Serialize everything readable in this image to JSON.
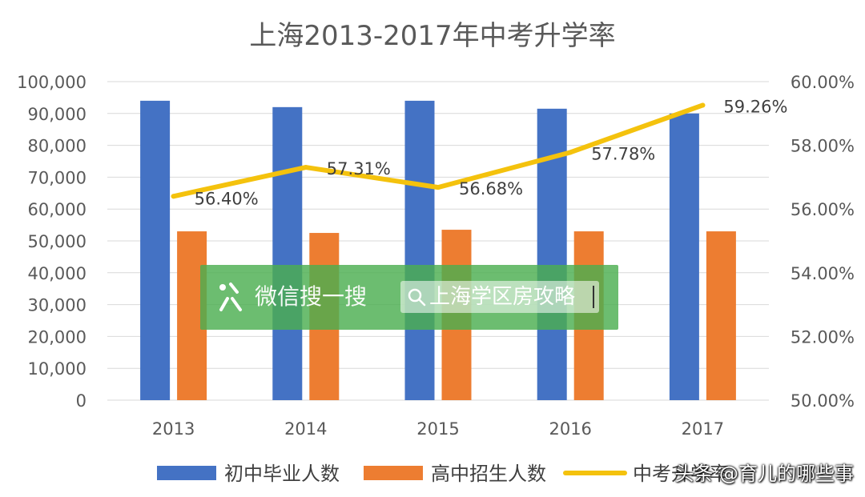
{
  "chart_data": {
    "type": "bar",
    "title": "上海2013-2017年中考升学率",
    "categories": [
      "2013",
      "2014",
      "2015",
      "2016",
      "2017"
    ],
    "y_left": {
      "min": 0,
      "max": 100000,
      "step": 10000,
      "ticks": [
        "0",
        "10,000",
        "20,000",
        "30,000",
        "40,000",
        "50,000",
        "60,000",
        "70,000",
        "80,000",
        "90,000",
        "100,000"
      ]
    },
    "y_right": {
      "min": 50,
      "max": 60,
      "step": 2,
      "ticks": [
        "50.00%",
        "52.00%",
        "54.00%",
        "56.00%",
        "58.00%",
        "60.00%"
      ]
    },
    "series": [
      {
        "name": "初中毕业人数",
        "type": "bar",
        "axis": "left",
        "color": "#4472C4",
        "values": [
          94000,
          92000,
          94000,
          91500,
          90000
        ]
      },
      {
        "name": "高中招生人数",
        "type": "bar",
        "axis": "left",
        "color": "#ED7D31",
        "values": [
          53000,
          52500,
          53500,
          53000,
          53000
        ]
      },
      {
        "name": "中考升学率",
        "type": "line",
        "axis": "right",
        "color": "#F4C20D",
        "values": [
          56.4,
          57.31,
          56.68,
          57.78,
          59.26
        ],
        "labels": [
          "56.40%",
          "57.31%",
          "56.68%",
          "57.78%",
          "59.26%"
        ]
      }
    ],
    "legend": [
      "初中毕业人数",
      "高中招生人数",
      "中考升学率"
    ],
    "legend_position": "bottom",
    "grid": true
  },
  "watermark": {
    "app": "微信搜一搜",
    "search_text": "上海学区房攻略"
  },
  "credit": "头条 @育儿的哪些事"
}
